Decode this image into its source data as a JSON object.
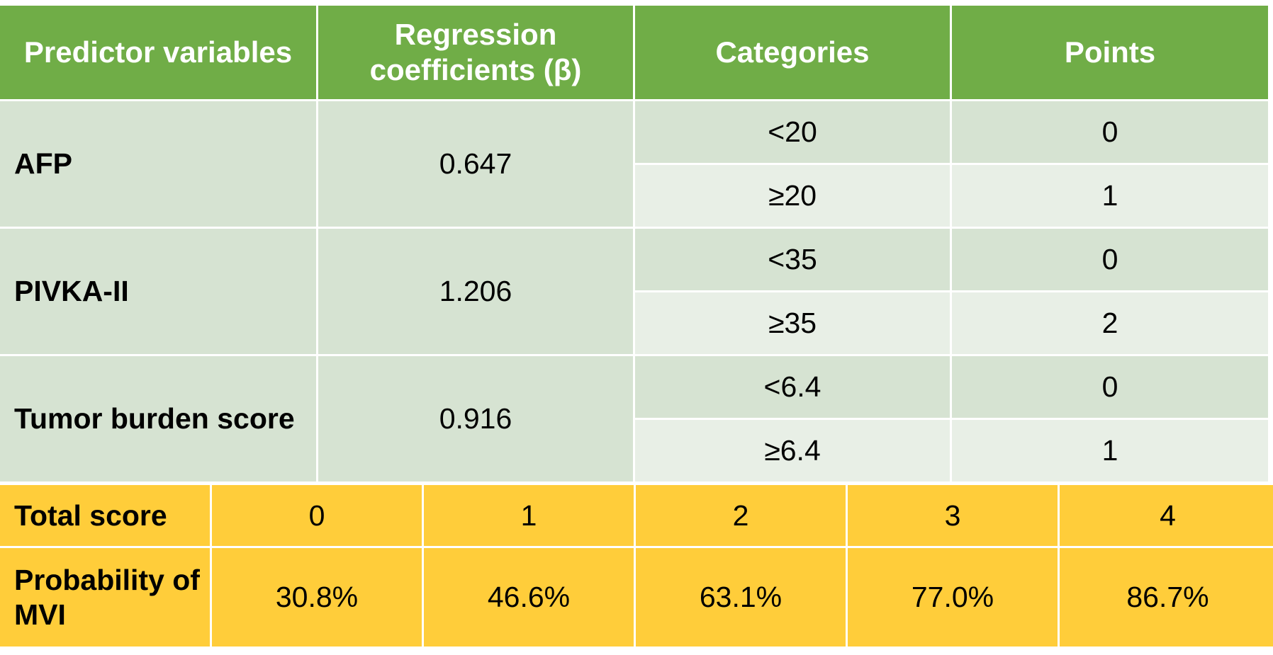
{
  "headers": [
    "Predictor variables",
    "Regression coefficients (β)",
    "Categories",
    "Points"
  ],
  "rows": [
    {
      "variable": "AFP",
      "coefficient": "0.647",
      "categories": [
        {
          "label": "<20",
          "points": "0"
        },
        {
          "label": "≥20",
          "points": "1"
        }
      ]
    },
    {
      "variable": "PIVKA-II",
      "coefficient": "1.206",
      "categories": [
        {
          "label": "<35",
          "points": "0"
        },
        {
          "label": "≥35",
          "points": "2"
        }
      ]
    },
    {
      "variable": "Tumor burden score",
      "coefficient": "0.916",
      "categories": [
        {
          "label": "<6.4",
          "points": "0"
        },
        {
          "label": "≥6.4",
          "points": "1"
        }
      ]
    }
  ],
  "score_table": {
    "total_label": "Total score",
    "scores": [
      "0",
      "1",
      "2",
      "3",
      "4"
    ],
    "probability_label": "Probability of MVI",
    "probabilities": [
      "30.8%",
      "46.6%",
      "63.1%",
      "77.0%",
      "86.7%"
    ]
  },
  "colors": {
    "header": "#70ad47",
    "body_dark": "#d6e3d2",
    "body_light": "#e8efe6",
    "summary": "#ffcd3a"
  }
}
